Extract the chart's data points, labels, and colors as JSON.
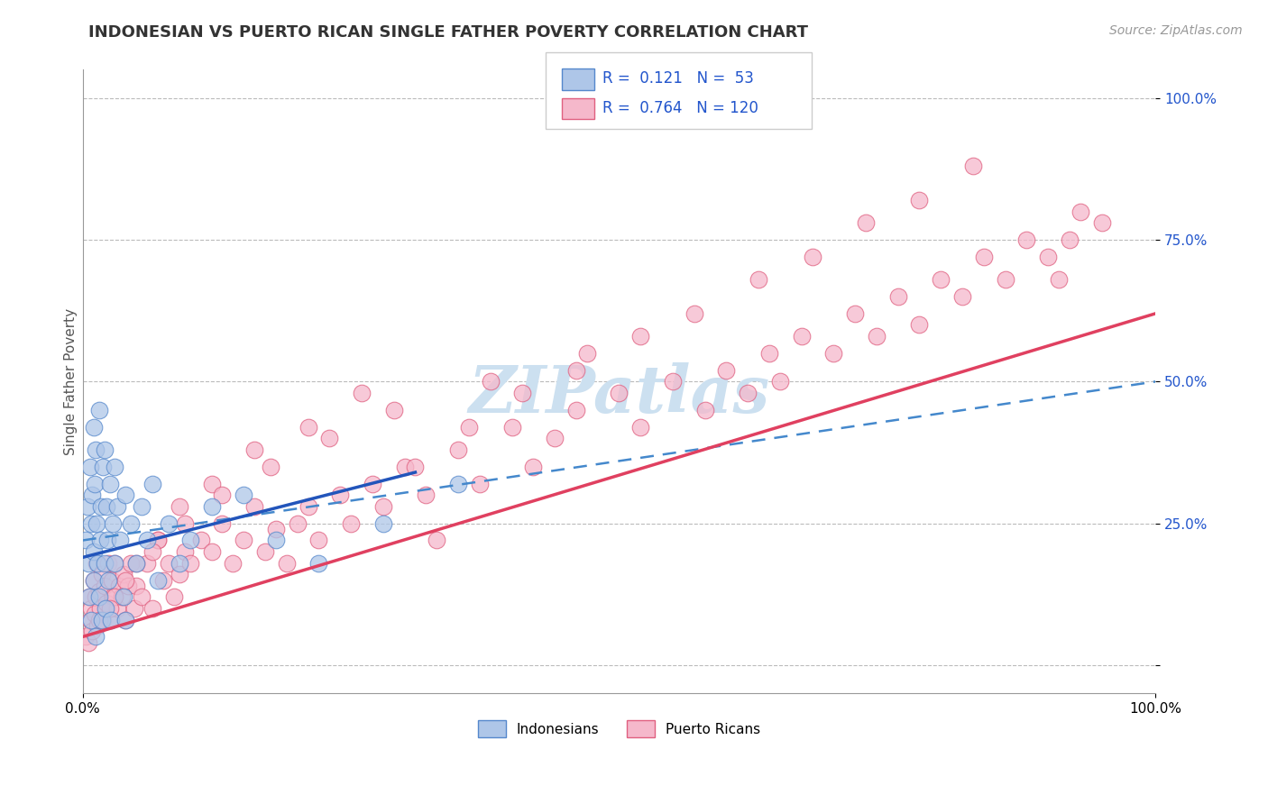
{
  "title": "INDONESIAN VS PUERTO RICAN SINGLE FATHER POVERTY CORRELATION CHART",
  "source_text": "Source: ZipAtlas.com",
  "ylabel": "Single Father Poverty",
  "watermark": "ZIPatlas",
  "xlim": [
    0,
    1
  ],
  "ylim": [
    -0.05,
    1.05
  ],
  "indonesian_color": "#aec6e8",
  "indonesian_edge_color": "#5588cc",
  "puerto_rican_color": "#f5b8cb",
  "puerto_rican_edge_color": "#e06080",
  "trend_indonesian_solid_color": "#2255bb",
  "trend_indonesian_dashed_color": "#4488cc",
  "trend_puerto_rican_color": "#e04060",
  "grid_color": "#bbbbbb",
  "background_color": "#ffffff",
  "R_indonesian": 0.121,
  "N_indonesian": 53,
  "R_puerto_rican": 0.764,
  "N_puerto_rican": 120,
  "legend_text_color": "#2255cc",
  "title_fontsize": 13,
  "axis_label_fontsize": 11,
  "tick_fontsize": 11,
  "source_fontsize": 10,
  "watermark_fontsize": 52,
  "watermark_color": "#cce0f0",
  "indonesian_x": [
    0.003,
    0.004,
    0.005,
    0.006,
    0.007,
    0.008,
    0.008,
    0.009,
    0.01,
    0.01,
    0.01,
    0.011,
    0.012,
    0.012,
    0.013,
    0.014,
    0.015,
    0.015,
    0.016,
    0.017,
    0.018,
    0.019,
    0.02,
    0.02,
    0.021,
    0.022,
    0.023,
    0.024,
    0.025,
    0.026,
    0.028,
    0.03,
    0.03,
    0.032,
    0.035,
    0.038,
    0.04,
    0.04,
    0.045,
    0.05,
    0.055,
    0.06,
    0.065,
    0.07,
    0.08,
    0.09,
    0.1,
    0.12,
    0.15,
    0.18,
    0.22,
    0.28,
    0.35
  ],
  "indonesian_y": [
    0.22,
    0.28,
    0.18,
    0.12,
    0.35,
    0.25,
    0.08,
    0.3,
    0.42,
    0.15,
    0.2,
    0.32,
    0.38,
    0.05,
    0.25,
    0.18,
    0.45,
    0.12,
    0.22,
    0.28,
    0.08,
    0.35,
    0.18,
    0.38,
    0.1,
    0.28,
    0.22,
    0.15,
    0.32,
    0.08,
    0.25,
    0.35,
    0.18,
    0.28,
    0.22,
    0.12,
    0.3,
    0.08,
    0.25,
    0.18,
    0.28,
    0.22,
    0.32,
    0.15,
    0.25,
    0.18,
    0.22,
    0.28,
    0.3,
    0.22,
    0.18,
    0.25,
    0.32
  ],
  "puerto_rican_x": [
    0.003,
    0.005,
    0.006,
    0.007,
    0.008,
    0.009,
    0.01,
    0.011,
    0.012,
    0.013,
    0.014,
    0.015,
    0.016,
    0.018,
    0.019,
    0.02,
    0.022,
    0.024,
    0.025,
    0.027,
    0.028,
    0.03,
    0.032,
    0.034,
    0.036,
    0.038,
    0.04,
    0.042,
    0.045,
    0.048,
    0.05,
    0.055,
    0.06,
    0.065,
    0.07,
    0.075,
    0.08,
    0.085,
    0.09,
    0.095,
    0.1,
    0.11,
    0.12,
    0.13,
    0.14,
    0.15,
    0.16,
    0.17,
    0.18,
    0.19,
    0.2,
    0.21,
    0.22,
    0.24,
    0.25,
    0.27,
    0.28,
    0.3,
    0.32,
    0.33,
    0.35,
    0.37,
    0.4,
    0.42,
    0.44,
    0.46,
    0.5,
    0.52,
    0.55,
    0.58,
    0.6,
    0.62,
    0.64,
    0.65,
    0.67,
    0.7,
    0.72,
    0.74,
    0.76,
    0.78,
    0.8,
    0.82,
    0.84,
    0.86,
    0.88,
    0.9,
    0.91,
    0.92,
    0.93,
    0.95,
    0.015,
    0.03,
    0.05,
    0.07,
    0.09,
    0.12,
    0.16,
    0.21,
    0.26,
    0.31,
    0.36,
    0.41,
    0.46,
    0.52,
    0.57,
    0.63,
    0.68,
    0.73,
    0.78,
    0.83,
    0.025,
    0.04,
    0.065,
    0.095,
    0.13,
    0.175,
    0.23,
    0.29,
    0.38,
    0.47
  ],
  "puerto_rican_y": [
    0.05,
    0.04,
    0.12,
    0.08,
    0.1,
    0.06,
    0.15,
    0.09,
    0.12,
    0.18,
    0.07,
    0.13,
    0.1,
    0.16,
    0.08,
    0.14,
    0.11,
    0.18,
    0.08,
    0.15,
    0.12,
    0.18,
    0.1,
    0.14,
    0.12,
    0.16,
    0.08,
    0.14,
    0.18,
    0.1,
    0.14,
    0.12,
    0.18,
    0.1,
    0.22,
    0.15,
    0.18,
    0.12,
    0.16,
    0.2,
    0.18,
    0.22,
    0.2,
    0.25,
    0.18,
    0.22,
    0.28,
    0.2,
    0.24,
    0.18,
    0.25,
    0.28,
    0.22,
    0.3,
    0.25,
    0.32,
    0.28,
    0.35,
    0.3,
    0.22,
    0.38,
    0.32,
    0.42,
    0.35,
    0.4,
    0.45,
    0.48,
    0.42,
    0.5,
    0.45,
    0.52,
    0.48,
    0.55,
    0.5,
    0.58,
    0.55,
    0.62,
    0.58,
    0.65,
    0.6,
    0.68,
    0.65,
    0.72,
    0.68,
    0.75,
    0.72,
    0.68,
    0.75,
    0.8,
    0.78,
    0.08,
    0.12,
    0.18,
    0.22,
    0.28,
    0.32,
    0.38,
    0.42,
    0.48,
    0.35,
    0.42,
    0.48,
    0.52,
    0.58,
    0.62,
    0.68,
    0.72,
    0.78,
    0.82,
    0.88,
    0.1,
    0.15,
    0.2,
    0.25,
    0.3,
    0.35,
    0.4,
    0.45,
    0.5,
    0.55
  ],
  "trend_solid_blue_x0": 0.0,
  "trend_solid_blue_y0": 0.19,
  "trend_solid_blue_x1": 0.31,
  "trend_solid_blue_y1": 0.34,
  "trend_dashed_blue_x0": 0.0,
  "trend_dashed_blue_y0": 0.22,
  "trend_dashed_blue_x1": 1.0,
  "trend_dashed_blue_y1": 0.5,
  "trend_pink_x0": 0.0,
  "trend_pink_y0": 0.05,
  "trend_pink_x1": 1.0,
  "trend_pink_y1": 0.62
}
